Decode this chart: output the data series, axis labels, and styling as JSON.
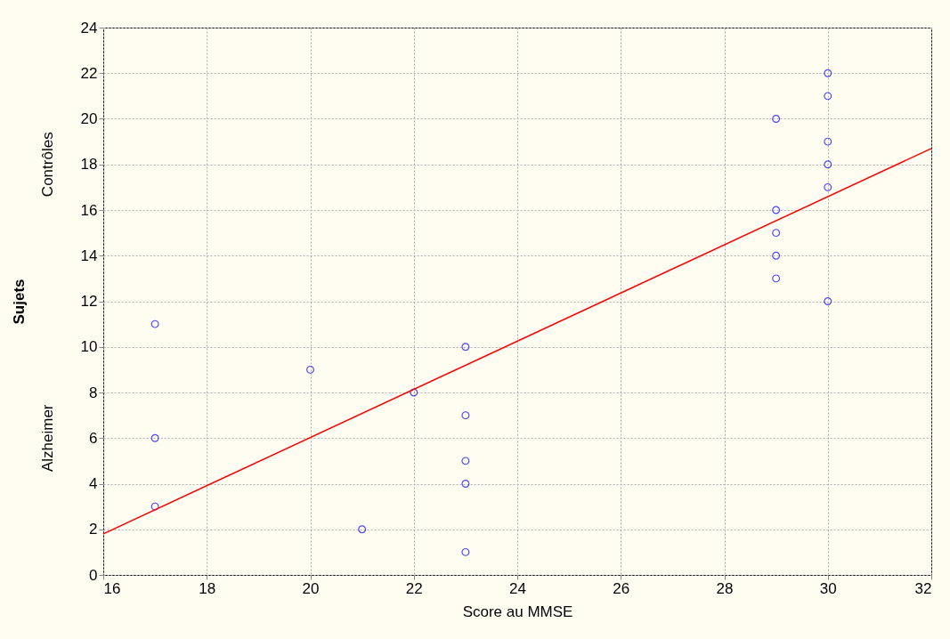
{
  "chart_data": {
    "type": "scatter",
    "xlabel": "Score au MMSE",
    "ylabel": "Sujets",
    "xlim": [
      16,
      32
    ],
    "ylim": [
      0,
      24
    ],
    "xticks": [
      16,
      18,
      20,
      22,
      24,
      26,
      28,
      30,
      32
    ],
    "yticks": [
      0,
      2,
      4,
      6,
      8,
      10,
      12,
      14,
      16,
      18,
      20,
      22,
      24
    ],
    "grid": true,
    "annotations": [
      "Contrôles",
      "Alzheimer"
    ],
    "series": [
      {
        "color": "#0000ff",
        "marker": "circle",
        "x": [
          17,
          17,
          17,
          20,
          21,
          22,
          23,
          23,
          23,
          23,
          23,
          29,
          29,
          29,
          29,
          29,
          30,
          30,
          30,
          30,
          30,
          30
        ],
        "values": [
          11,
          6,
          3,
          9,
          2,
          8,
          10,
          7,
          5,
          4,
          1,
          20,
          16,
          15,
          14,
          13,
          22,
          21,
          19,
          18,
          17,
          12
        ]
      },
      {
        "type": "line",
        "color": "#ff0000",
        "line_style": "solid",
        "marker": "none",
        "x": [
          16,
          32
        ],
        "values": [
          1.8,
          18.7
        ]
      }
    ]
  }
}
